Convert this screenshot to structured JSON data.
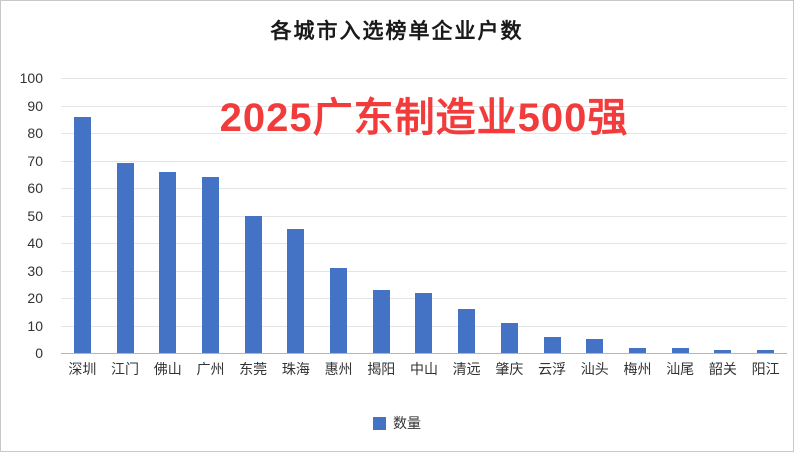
{
  "chart_data": {
    "type": "bar",
    "title": "各城市入选榜单企业户数",
    "watermark": "2025广东制造业500强",
    "legend_label": "数量",
    "categories": [
      "深圳",
      "江门",
      "佛山",
      "广州",
      "东莞",
      "珠海",
      "惠州",
      "揭阳",
      "中山",
      "清远",
      "肇庆",
      "云浮",
      "汕头",
      "梅州",
      "汕尾",
      "韶关",
      "阳江"
    ],
    "values": [
      86,
      69,
      66,
      64,
      50,
      45,
      31,
      23,
      22,
      16,
      11,
      6,
      5,
      2,
      2,
      1,
      1
    ],
    "xlabel": "",
    "ylabel": "",
    "ylim": [
      0,
      100
    ],
    "ytick_interval": 10,
    "grid": true,
    "legend_position": "bottom",
    "bar_color": "#4472C4",
    "watermark_color": "#F23C3C"
  }
}
